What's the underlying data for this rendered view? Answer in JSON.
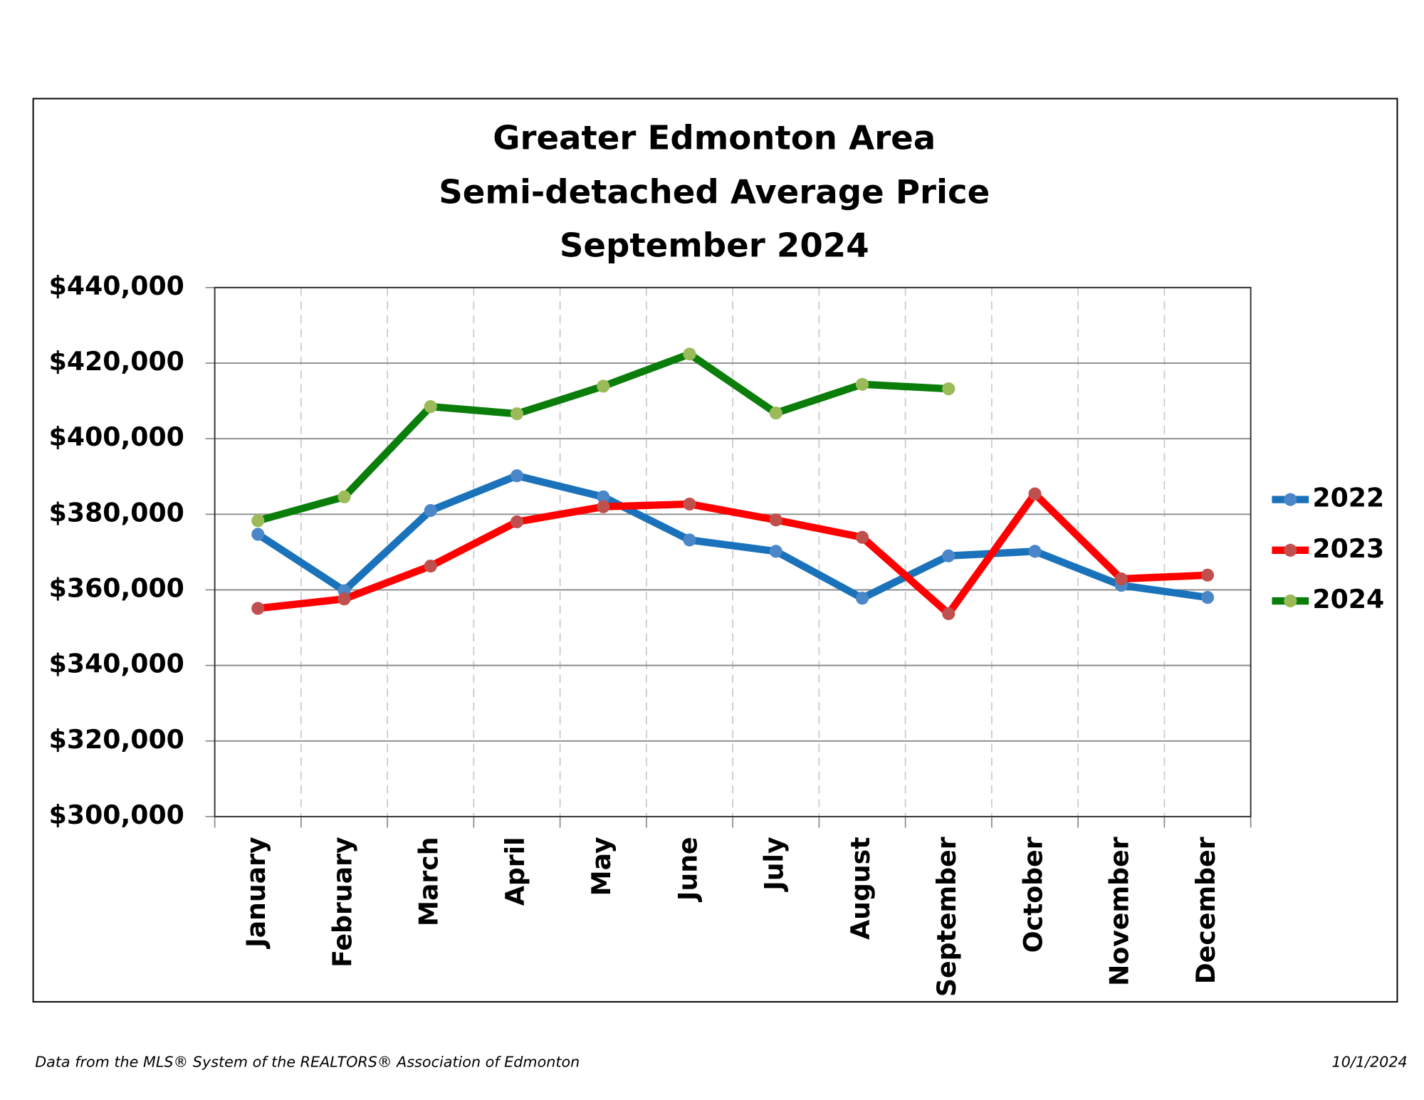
{
  "chart_data": {
    "type": "line",
    "title": [
      "Greater Edmonton Area",
      "Semi-detached Average Price",
      "September 2024"
    ],
    "categories": [
      "January",
      "February",
      "March",
      "April",
      "May",
      "June",
      "July",
      "August",
      "September",
      "October",
      "November",
      "December"
    ],
    "series": [
      {
        "name": "2022",
        "color": "#1a72bb",
        "marker_color": "#4a86c8",
        "values": [
          374700,
          359800,
          381000,
          390200,
          384600,
          373200,
          370200,
          357800,
          369000,
          370200,
          361200,
          358000
        ]
      },
      {
        "name": "2023",
        "color": "#ff0000",
        "marker_color": "#c0504d",
        "values": [
          355100,
          357600,
          366300,
          378000,
          382000,
          382700,
          378500,
          373900,
          353700,
          385400,
          362900,
          363900
        ]
      },
      {
        "name": "2024",
        "color": "#0a7d0a",
        "marker_color": "#9bbb59",
        "values": [
          378300,
          384600,
          408500,
          406600,
          413900,
          422400,
          406800,
          414400,
          413200,
          null,
          null,
          null
        ]
      }
    ],
    "ylim": [
      300000,
      440000
    ],
    "yticks": [
      {
        "value": 300000,
        "label": "$300,000"
      },
      {
        "value": 320000,
        "label": "$320,000"
      },
      {
        "value": 340000,
        "label": "$340,000"
      },
      {
        "value": 360000,
        "label": "$360,000"
      },
      {
        "value": 380000,
        "label": "$380,000"
      },
      {
        "value": 400000,
        "label": "$400,000"
      },
      {
        "value": 420000,
        "label": "$420,000"
      },
      {
        "value": 440000,
        "label": "$440,000"
      }
    ],
    "grid": true,
    "legend": "right",
    "source": "Data from the MLS® System of the REALTORS® Association of Edmonton",
    "date": "10/1/2024"
  }
}
